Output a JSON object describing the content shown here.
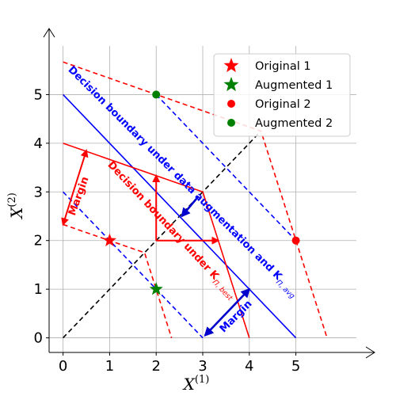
{
  "chart_data": {
    "type": "scatter",
    "xlim": [
      -0.3,
      6.3
    ],
    "ylim": [
      -0.3,
      6.0
    ],
    "xticks": [
      0,
      1,
      2,
      3,
      4,
      5
    ],
    "yticks": [
      0,
      1,
      2,
      3,
      4,
      5
    ],
    "xlabel": "X",
    "xlabel_sup": "(1)",
    "ylabel": "X",
    "ylabel_sup": "(2)",
    "grid": true,
    "legend_position": "top-right",
    "legend": [
      {
        "label": "Original 1",
        "marker": "star",
        "color": "#ff0000"
      },
      {
        "label": "Augmented 1",
        "marker": "star",
        "color": "#008000"
      },
      {
        "label": "Original 2",
        "marker": "circle",
        "color": "#ff0000"
      },
      {
        "label": "Augmented 2",
        "marker": "circle",
        "color": "#008000"
      }
    ],
    "points": [
      {
        "series": "Original 1",
        "x": 1,
        "y": 2,
        "marker": "star",
        "color": "#ff0000"
      },
      {
        "series": "Augmented 1",
        "x": 2,
        "y": 1,
        "marker": "star",
        "color": "#008000"
      },
      {
        "series": "Original 2",
        "x": 5,
        "y": 2,
        "marker": "circle",
        "color": "#ff0000"
      },
      {
        "series": "Augmented 2",
        "x": 2,
        "y": 5,
        "marker": "circle",
        "color": "#008000"
      }
    ],
    "lines": [
      {
        "name": "black-diagonal",
        "color": "#000000",
        "dash": true,
        "points": [
          [
            0,
            0
          ],
          [
            4.25,
            4.25
          ]
        ]
      },
      {
        "name": "blue-boundary",
        "color": "#0000ff",
        "dash": false,
        "points": [
          [
            0,
            5
          ],
          [
            5,
            0
          ]
        ]
      },
      {
        "name": "blue-margin-upper",
        "color": "#0000ff",
        "dash": true,
        "points": [
          [
            2,
            5
          ],
          [
            5,
            2
          ]
        ]
      },
      {
        "name": "blue-margin-lower",
        "color": "#0000ff",
        "dash": true,
        "points": [
          [
            0,
            3
          ],
          [
            3,
            0
          ]
        ]
      },
      {
        "name": "red-boundary",
        "color": "#ff0000",
        "dash": false,
        "points": [
          [
            0,
            4
          ],
          [
            3,
            3
          ],
          [
            4,
            0
          ]
        ]
      },
      {
        "name": "red-margin-upper",
        "color": "#ff0000",
        "dash": true,
        "points": [
          [
            0,
            5.67
          ],
          [
            4.25,
            4.25
          ],
          [
            5.67,
            0
          ]
        ]
      },
      {
        "name": "red-margin-lower",
        "color": "#ff0000",
        "dash": true,
        "points": [
          [
            0,
            2.33
          ],
          [
            1.75,
            1.75
          ],
          [
            2.33,
            0
          ]
        ]
      }
    ],
    "arrows": [
      {
        "name": "red-margin-arrow",
        "color": "#ff0000",
        "from": [
          0.5,
          3.85
        ],
        "to": [
          0.0,
          2.33
        ],
        "double": true
      },
      {
        "name": "red-vertical-arrow",
        "color": "#ff0000",
        "from": [
          2.0,
          2.0
        ],
        "to": [
          2.0,
          3.33
        ],
        "double": false
      },
      {
        "name": "red-horizontal-arrow",
        "color": "#ff0000",
        "from": [
          2.0,
          2.0
        ],
        "to": [
          3.33,
          2.0
        ],
        "double": false
      },
      {
        "name": "blue-center-arrow",
        "color": "#0000cc",
        "from": [
          2.9,
          2.9
        ],
        "to": [
          2.55,
          2.5
        ],
        "double": false
      },
      {
        "name": "blue-margin-arrow",
        "color": "#0000cc",
        "from": [
          3.05,
          0.05
        ],
        "to": [
          4.0,
          1.0
        ],
        "double": true
      }
    ],
    "annotations": [
      {
        "name": "blue-boundary-annotation",
        "text": "Decision boundary under data augmentation and K",
        "sub": "Π, avg",
        "color": "#0000ff",
        "x": 0.1,
        "y": 5.5,
        "rotation": 45
      },
      {
        "name": "red-boundary-annotation",
        "text": "Decision boundary under K",
        "sub": "Π, best",
        "color": "#ff0000",
        "x": 0.95,
        "y": 3.55,
        "rotation": 47
      },
      {
        "name": "red-margin-annotation",
        "text": "Margin",
        "sub": "",
        "color": "#ff0000",
        "x": 0.25,
        "y": 2.5,
        "rotation": -70
      },
      {
        "name": "blue-margin-annotation",
        "text": "Margin",
        "sub": "",
        "color": "#0000ff",
        "x": 3.45,
        "y": 0.1,
        "rotation": -45
      }
    ]
  }
}
